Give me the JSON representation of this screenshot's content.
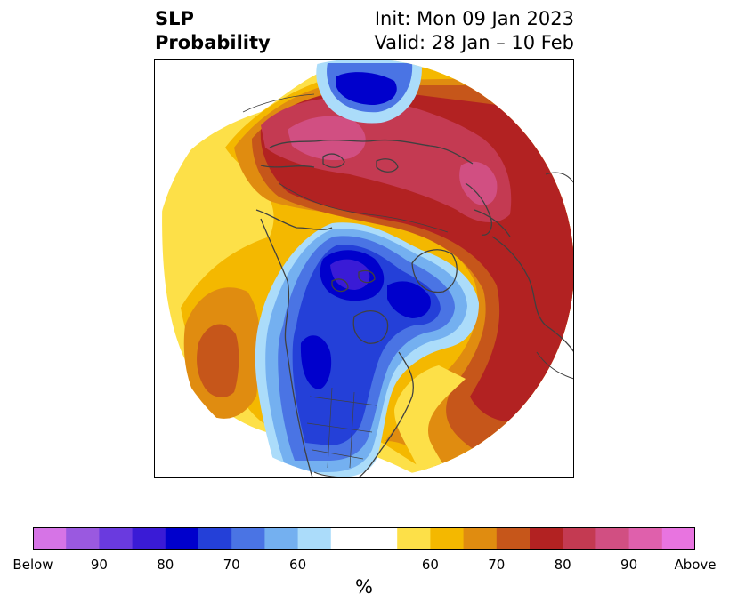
{
  "title": {
    "line1": "SLP",
    "line2": "Probability",
    "init": "Init: Mon 09 Jan 2023",
    "valid": "Valid: 28 Jan – 10 Feb"
  },
  "colorbar": {
    "unit": "%",
    "segments": [
      "#d674e6",
      "#9a59e0",
      "#6a3adf",
      "#3a1bd6",
      "#0000cc",
      "#2440d8",
      "#4a74e4",
      "#74b0f0",
      "#abdcfa",
      "#ffffff",
      "#ffffff",
      "#fde048",
      "#f4b800",
      "#e08c10",
      "#c6561a",
      "#b22222",
      "#c43a52",
      "#d14f82",
      "#df60ac",
      "#e874e0"
    ],
    "ticks": [
      "Below",
      "90",
      "80",
      "70",
      "60",
      "60",
      "70",
      "80",
      "90",
      "Above"
    ]
  },
  "colors": {
    "above_60": "#fde048",
    "above_65": "#f4b800",
    "above_70": "#e08c10",
    "above_75": "#c6561a",
    "above_80": "#b22222",
    "above_85": "#c43a52",
    "above_90": "#d14f82",
    "below_60": "#abdcfa",
    "below_65": "#74b0f0",
    "below_70": "#4a74e4",
    "below_75": "#2440d8",
    "below_80": "#0000cc",
    "below_85": "#3a1bd6",
    "coast": "#404040"
  }
}
